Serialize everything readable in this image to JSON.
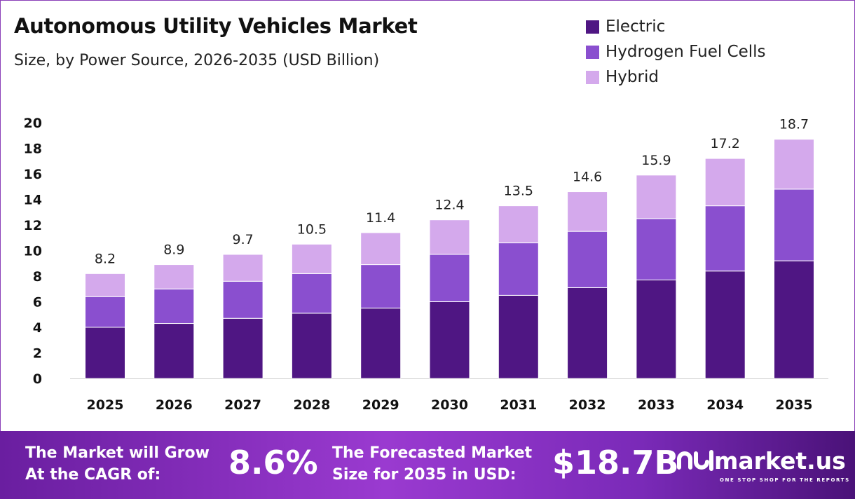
{
  "header": {
    "title": "Autonomous Utility Vehicles Market",
    "subtitle": "Size, by Power Source, 2026-2035 (USD Billion)"
  },
  "chart_data": {
    "type": "bar",
    "stacked": true,
    "categories": [
      "2025",
      "2026",
      "2027",
      "2028",
      "2029",
      "2030",
      "2031",
      "2032",
      "2033",
      "2034",
      "2035"
    ],
    "series": [
      {
        "name": "Electric",
        "color": "#4f1683",
        "values": [
          4.0,
          4.3,
          4.7,
          5.1,
          5.5,
          6.0,
          6.5,
          7.1,
          7.7,
          8.4,
          9.2
        ]
      },
      {
        "name": "Hydrogen Fuel Cells",
        "color": "#8a4fcf",
        "values": [
          2.4,
          2.7,
          2.9,
          3.1,
          3.4,
          3.7,
          4.1,
          4.4,
          4.8,
          5.1,
          5.6
        ]
      },
      {
        "name": "Hybrid",
        "color": "#d4a9ec",
        "values": [
          1.8,
          1.9,
          2.1,
          2.3,
          2.5,
          2.7,
          2.9,
          3.1,
          3.4,
          3.7,
          3.9
        ]
      }
    ],
    "totals": [
      "8.2",
      "8.9",
      "9.7",
      "10.5",
      "11.4",
      "12.4",
      "13.5",
      "14.6",
      "15.9",
      "17.2",
      "18.7"
    ],
    "yticks": [
      "0",
      "2",
      "4",
      "6",
      "8",
      "10",
      "12",
      "14",
      "16",
      "18",
      "20"
    ],
    "ylim": [
      0,
      20
    ],
    "grid": false,
    "legend": "top-right"
  },
  "banner": {
    "cagr_label_1": "The Market will Grow",
    "cagr_label_2": "At the CAGR of:",
    "cagr_value": "8.6%",
    "forecast_label_1": "The Forecasted Market",
    "forecast_label_2": "Size for 2035 in USD:",
    "forecast_value": "$18.7B",
    "logo_name": "market.us",
    "logo_tagline": "ONE STOP SHOP FOR THE REPORTS"
  }
}
